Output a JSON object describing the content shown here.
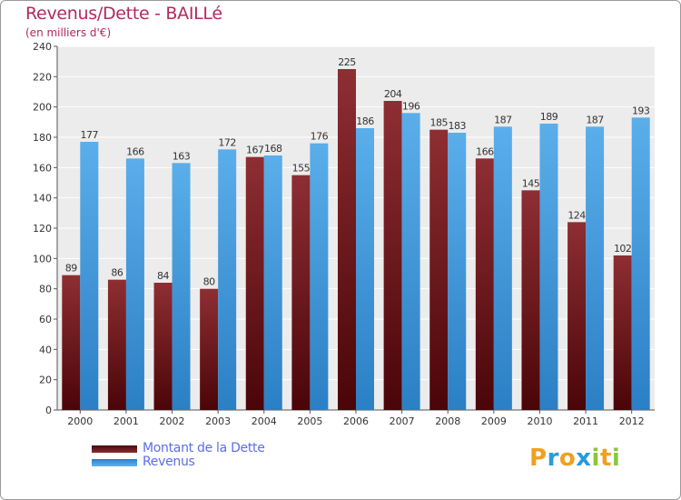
{
  "chart_data": {
    "type": "bar",
    "title": "Revenus/Dette - BAILLé",
    "subtitle": "(en milliers d'€)",
    "categories": [
      "2000",
      "2001",
      "2002",
      "2003",
      "2004",
      "2005",
      "2006",
      "2007",
      "2008",
      "2009",
      "2010",
      "2011",
      "2012"
    ],
    "series": [
      {
        "name": "Montant de la Dette",
        "color": "#7a1e22",
        "values": [
          89,
          86,
          84,
          80,
          167,
          155,
          225,
          204,
          185,
          166,
          145,
          124,
          102
        ]
      },
      {
        "name": "Revenus",
        "color": "#4fa6e8",
        "values": [
          177,
          166,
          163,
          172,
          168,
          176,
          186,
          196,
          183,
          187,
          189,
          187,
          193
        ]
      }
    ],
    "ylim": [
      0,
      240
    ],
    "yticks": [
      0,
      20,
      40,
      60,
      80,
      100,
      120,
      140,
      160,
      180,
      200,
      220,
      240
    ],
    "grid": true,
    "legend_position": "bottom-left"
  },
  "brand": {
    "name": "Proxiti",
    "letters": [
      "P",
      "r",
      "o",
      "x",
      "i",
      "t",
      "i"
    ],
    "letter_colors": [
      "#f0a020",
      "#2a9ad8",
      "#f0a020",
      "#2a9ad8",
      "#8bc63f",
      "#f0a020",
      "#8bc63f"
    ]
  }
}
